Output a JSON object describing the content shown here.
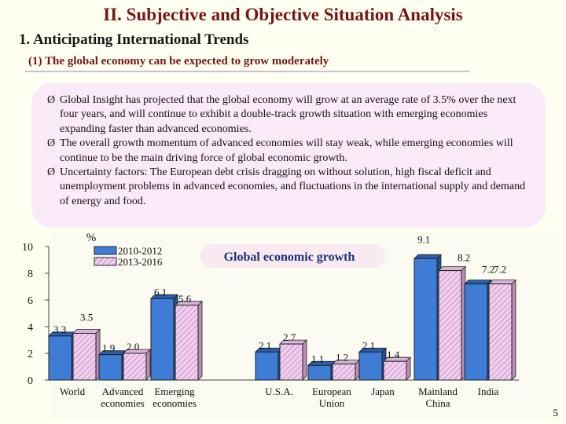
{
  "header": {
    "title": "II. Subjective and Objective Situation Analysis",
    "section": "1. Anticipating International Trends",
    "subsection": "(1) The global economy can be expected to grow moderately"
  },
  "bullets": [
    {
      "icon": "arrow-bullet-icon",
      "marker": "Ø",
      "text": "Global Insight has projected that the global economy will grow at an average rate of 3.5% over the next four years, and will continue to exhibit a double-track growth situation with emerging economies expanding faster than advanced economies."
    },
    {
      "icon": "arrow-bullet-icon",
      "marker": "Ø",
      "text": "The overall growth momentum of advanced economies will stay weak, while emerging economies will continue to be the main driving force of global economic growth."
    },
    {
      "icon": "arrow-bullet-icon",
      "marker": "Ø",
      "text": "Uncertainty factors: The European debt crisis dragging on without solution, high fiscal deficit and unemployment problems in advanced economies, and fluctuations in the international supply and demand of energy and food."
    }
  ],
  "page_number": "5",
  "colors": {
    "title": "#7a1414",
    "bullet_box": "#fbeaf7",
    "series_a_fill": "#3f7cd6",
    "series_b_fill": "#f3cdf0",
    "callout": "#f9eaf2",
    "callout_text": "#1a2f80"
  },
  "chart_data": {
    "type": "bar",
    "title": "Global economic growth",
    "ylabel": "%",
    "ylim": [
      0,
      10
    ],
    "yticks": [
      "0",
      "2",
      "4",
      "6",
      "8",
      "10"
    ],
    "grid": false,
    "legend_position": "top-left",
    "categories": [
      "World",
      "Advanced economies",
      "Emerging economies",
      "U.S.A.",
      "European Union",
      "Japan",
      "Mainland China",
      "India"
    ],
    "category_label_lines": [
      [
        "World"
      ],
      [
        "Advanced",
        "economies"
      ],
      [
        "Emerging",
        "economies"
      ],
      [
        "U.S.A."
      ],
      [
        "European",
        "Union"
      ],
      [
        "Japan"
      ],
      [
        "Mainland",
        "China"
      ],
      [
        "India"
      ]
    ],
    "series": [
      {
        "name": "2010-2012",
        "values": [
          3.3,
          1.9,
          6.1,
          2.1,
          1.1,
          2.1,
          9.1,
          7.2
        ],
        "labels": [
          "3.3",
          "1.9",
          "6.1",
          "2.1",
          "1.1",
          "2.1",
          "9.1",
          "7.2"
        ]
      },
      {
        "name": "2013-2016",
        "values": [
          3.5,
          2.0,
          5.6,
          2.7,
          1.2,
          1.4,
          8.2,
          7.2
        ],
        "labels": [
          "3.5",
          "2.0",
          "5.6",
          "2.7",
          "1.2",
          "1.4",
          "8.2",
          "7.2"
        ]
      }
    ]
  }
}
